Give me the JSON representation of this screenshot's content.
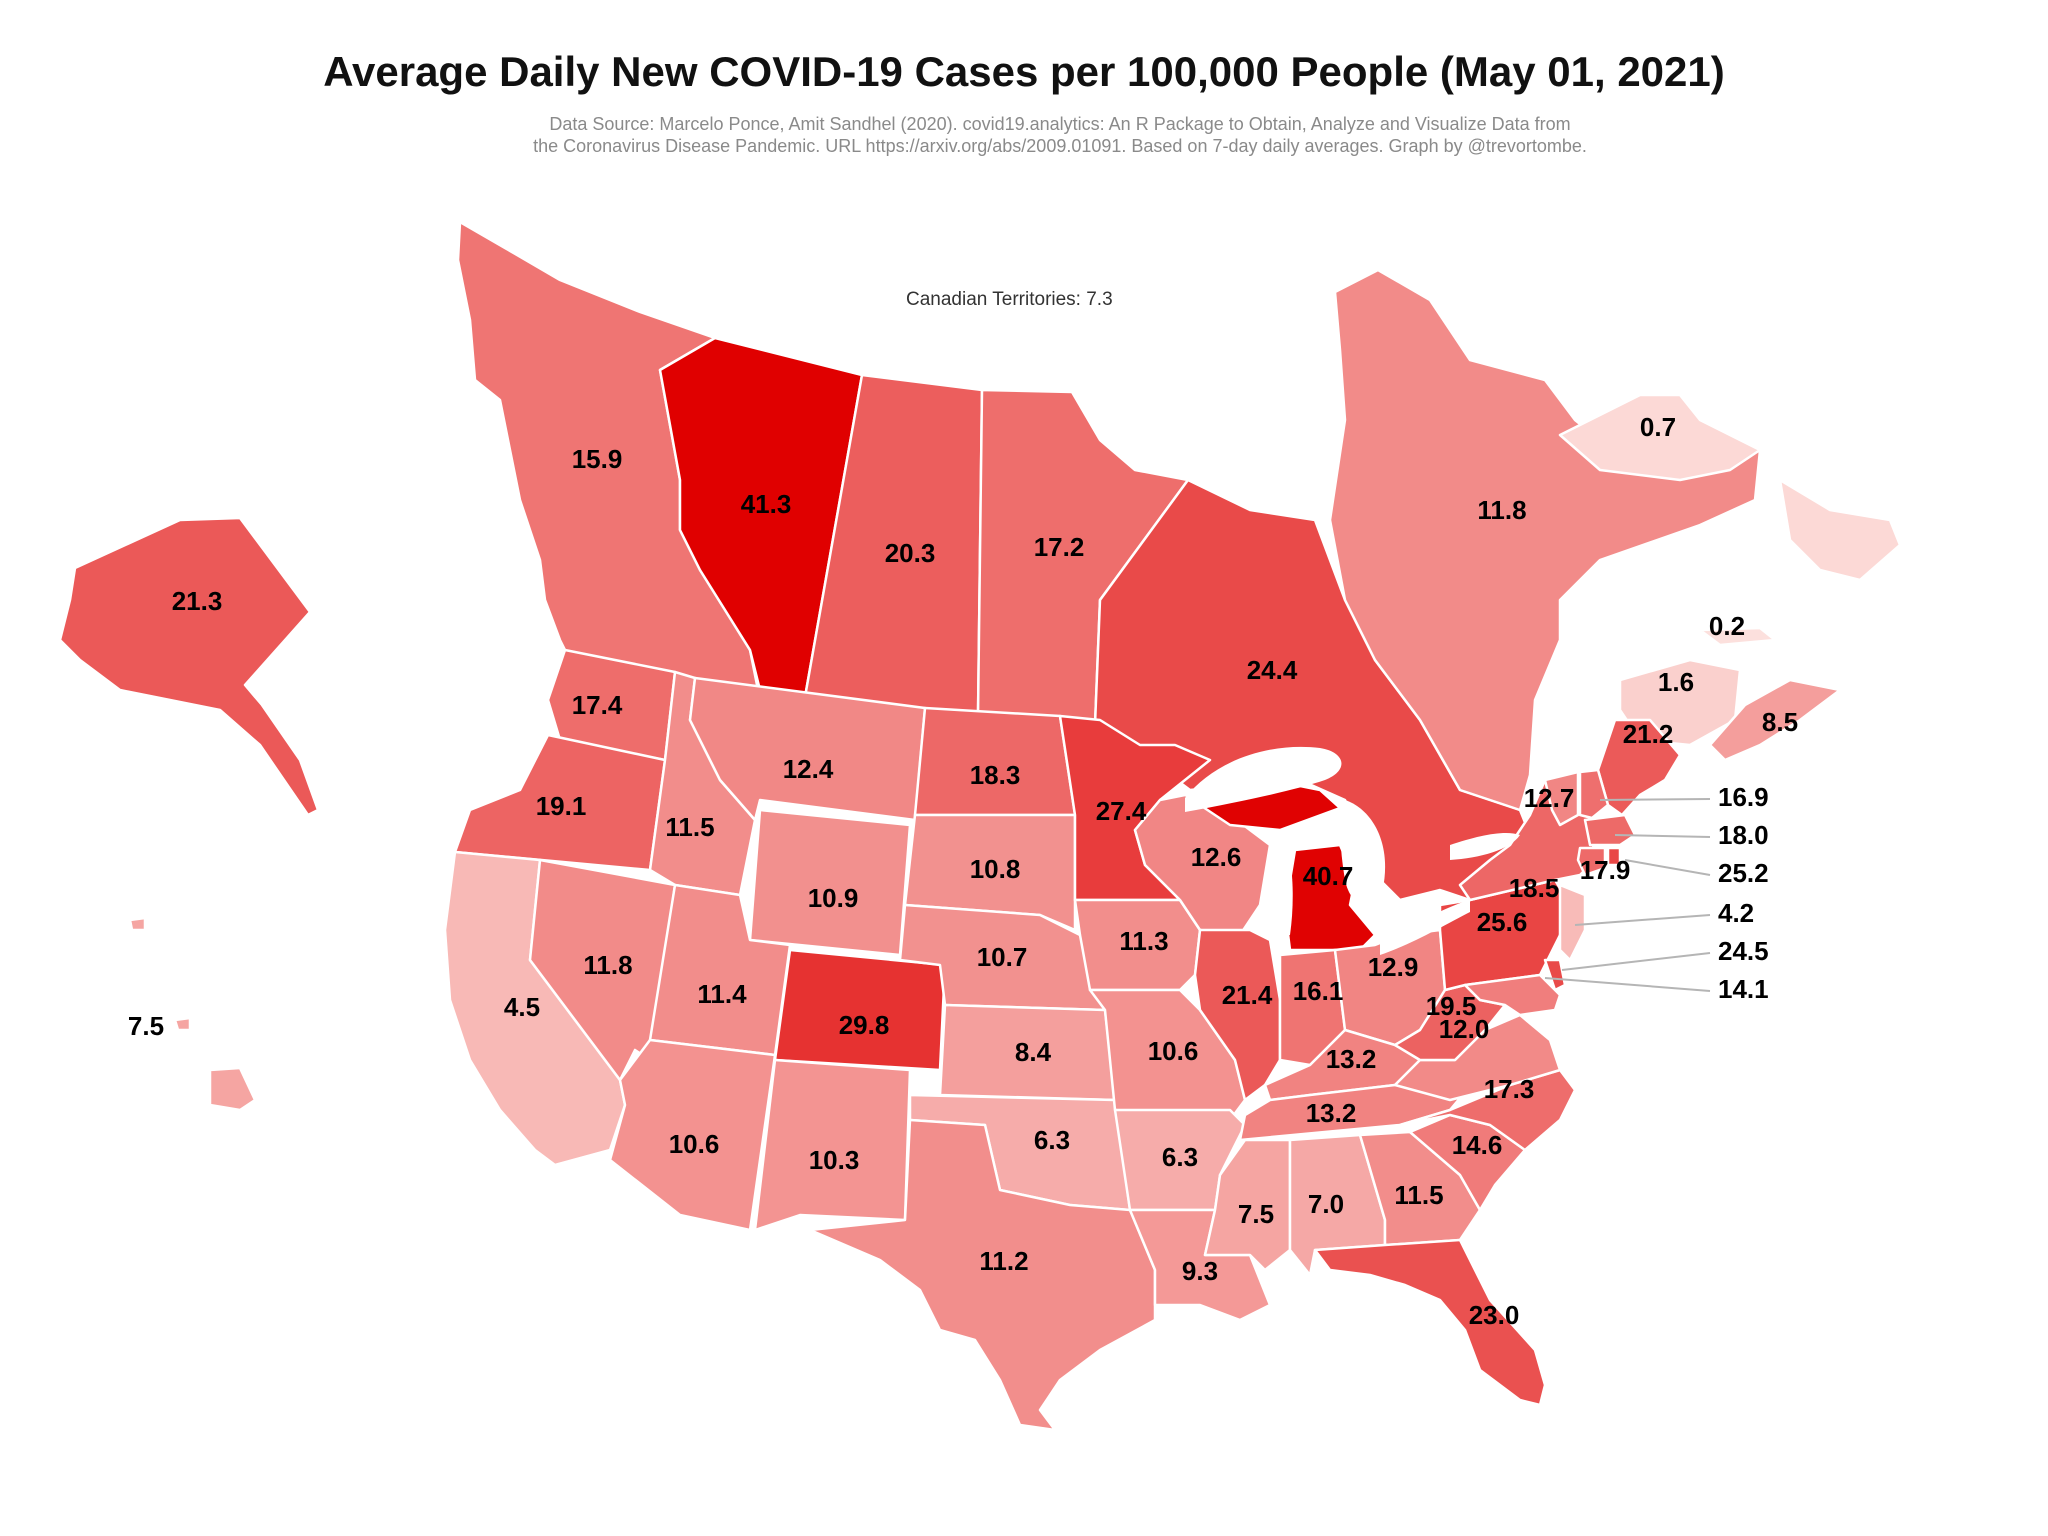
{
  "title": "Average Daily New COVID-19 Cases per 100,000 People (May 01, 2021)",
  "source_line1": "Data Source: Marcelo Ponce, Amit Sandhel (2020). covid19.analytics: An R Package to Obtain, Analyze and Visualize Data from",
  "source_line2": "the Coronavirus Disease Pandemic. URL https://arxiv.org/abs/2009.01091. Based on 7-day daily averages. Graph by @trevortombe.",
  "territories_note": "Canadian Territories: 7.3",
  "color_scale": {
    "low": "#fde4e1",
    "high": "#e00000"
  },
  "chart_data": {
    "type": "choropleth",
    "metric": "Average daily new COVID-19 cases per 100,000 people",
    "date": "May 01, 2021",
    "regions": [
      {
        "id": "BC",
        "value": 15.9,
        "label": "15.9"
      },
      {
        "id": "AB",
        "value": 41.3,
        "label": "41.3"
      },
      {
        "id": "SK",
        "value": 20.3,
        "label": "20.3"
      },
      {
        "id": "MB",
        "value": 17.2,
        "label": "17.2"
      },
      {
        "id": "ON",
        "value": 24.4,
        "label": "24.4"
      },
      {
        "id": "QC",
        "value": 11.8,
        "label": "11.8"
      },
      {
        "id": "NL",
        "value": 0.7,
        "label": "0.7"
      },
      {
        "id": "PE",
        "value": 0.2,
        "label": "0.2"
      },
      {
        "id": "NB",
        "value": 1.6,
        "label": "1.6"
      },
      {
        "id": "NS",
        "value": 8.5,
        "label": "8.5"
      },
      {
        "id": "AK",
        "value": 21.3,
        "label": "21.3"
      },
      {
        "id": "HI",
        "value": 7.5,
        "label": "7.5"
      },
      {
        "id": "WA",
        "value": 17.4,
        "label": "17.4"
      },
      {
        "id": "OR",
        "value": 19.1,
        "label": "19.1"
      },
      {
        "id": "CA",
        "value": 4.5,
        "label": "4.5"
      },
      {
        "id": "NV",
        "value": 11.8,
        "label": "11.8"
      },
      {
        "id": "ID",
        "value": 11.5,
        "label": "11.5"
      },
      {
        "id": "MT",
        "value": 12.4,
        "label": "12.4"
      },
      {
        "id": "WY",
        "value": 10.9,
        "label": "10.9"
      },
      {
        "id": "UT",
        "value": 11.4,
        "label": "11.4"
      },
      {
        "id": "AZ",
        "value": 10.6,
        "label": "10.6"
      },
      {
        "id": "CO",
        "value": 29.8,
        "label": "29.8"
      },
      {
        "id": "NM",
        "value": 10.3,
        "label": "10.3"
      },
      {
        "id": "ND",
        "value": 18.3,
        "label": "18.3"
      },
      {
        "id": "SD",
        "value": 10.8,
        "label": "10.8"
      },
      {
        "id": "NE",
        "value": 10.7,
        "label": "10.7"
      },
      {
        "id": "KS",
        "value": 8.4,
        "label": "8.4"
      },
      {
        "id": "OK",
        "value": 6.3,
        "label": "6.3"
      },
      {
        "id": "TX",
        "value": 11.2,
        "label": "11.2"
      },
      {
        "id": "MN",
        "value": 27.4,
        "label": "27.4"
      },
      {
        "id": "IA",
        "value": 11.3,
        "label": "11.3"
      },
      {
        "id": "MO",
        "value": 10.6,
        "label": "10.6"
      },
      {
        "id": "AR",
        "value": 6.3,
        "label": "6.3"
      },
      {
        "id": "LA",
        "value": 9.3,
        "label": "9.3"
      },
      {
        "id": "WI",
        "value": 12.6,
        "label": "12.6"
      },
      {
        "id": "IL",
        "value": 21.4,
        "label": "21.4"
      },
      {
        "id": "MI",
        "value": 40.7,
        "label": "40.7"
      },
      {
        "id": "IN",
        "value": 16.1,
        "label": "16.1"
      },
      {
        "id": "OH",
        "value": 12.9,
        "label": "12.9"
      },
      {
        "id": "KY",
        "value": 13.2,
        "label": "13.2"
      },
      {
        "id": "TN",
        "value": 13.2,
        "label": "13.2"
      },
      {
        "id": "MS",
        "value": 7.5,
        "label": "7.5"
      },
      {
        "id": "AL",
        "value": 7.0,
        "label": "7.0"
      },
      {
        "id": "GA",
        "value": 11.5,
        "label": "11.5"
      },
      {
        "id": "FL",
        "value": 23.0,
        "label": "23.0"
      },
      {
        "id": "SC",
        "value": 14.6,
        "label": "14.6"
      },
      {
        "id": "NC",
        "value": 17.3,
        "label": "17.3"
      },
      {
        "id": "VA",
        "value": 12.0,
        "label": "12.0"
      },
      {
        "id": "WV",
        "value": 19.5,
        "label": "19.5"
      },
      {
        "id": "PA",
        "value": 25.6,
        "label": "25.6"
      },
      {
        "id": "NY",
        "value": 18.5,
        "label": "18.5"
      },
      {
        "id": "VT",
        "value": 12.7,
        "label": "12.7"
      },
      {
        "id": "ME",
        "value": 21.2,
        "label": "21.2"
      },
      {
        "id": "CT",
        "value": 17.9,
        "label": "17.9"
      },
      {
        "id": "NH",
        "value": 16.9,
        "label": "16.9"
      },
      {
        "id": "MA",
        "value": 18.0,
        "label": "18.0"
      },
      {
        "id": "RI",
        "value": 25.2,
        "label": "25.2"
      },
      {
        "id": "NJ",
        "value": 4.2,
        "label": "4.2"
      },
      {
        "id": "DE",
        "value": 24.5,
        "label": "24.5"
      },
      {
        "id": "MD",
        "value": 14.1,
        "label": "14.1"
      }
    ]
  }
}
